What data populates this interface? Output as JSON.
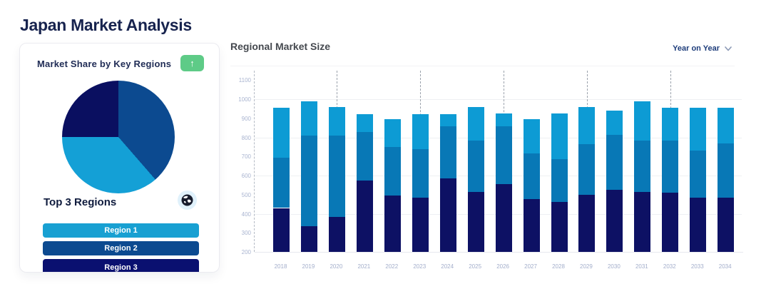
{
  "page_title": "Japan Market Analysis",
  "palette": {
    "title_navy": "#17234e",
    "green_accent": "#5ecb87",
    "bar_navy": "#0d1164",
    "bar_blue": "#0878b6",
    "bar_light_blue": "#0d9bd4",
    "pie_navy": "#0a0f60",
    "pie_blue": "#0c4a90",
    "pie_light_blue": "#14a0d6",
    "globe_bg": "#e0f1fb",
    "globe_fill": "#161b2c"
  },
  "market_share_card": {
    "title": "Market Share by Key Regions",
    "trend_button_icon": "↑",
    "top_regions_title": "Top 3 Regions",
    "globe_icon": "globe-icon",
    "regions": [
      {
        "label": "Region 1",
        "color": "#18a0d2"
      },
      {
        "label": "Region 2",
        "color": "#0c4a90"
      },
      {
        "label": "Region 3",
        "color": "#0a1070"
      }
    ]
  },
  "market_size_panel": {
    "title": "Regional Market Size",
    "filter_label": "Year on Year"
  },
  "chart_data": [
    {
      "type": "pie",
      "title": "Market Share by Key Regions",
      "start_angle_deg": 0,
      "clockwise": true,
      "slices": [
        {
          "name": "blue-slice",
          "value_pct": 38.6,
          "color": "#0c4a90"
        },
        {
          "name": "light-blue-slice",
          "value_pct": 36.4,
          "color": "#14a0d6"
        },
        {
          "name": "navy-slice",
          "value_pct": 25.0,
          "color": "#0a0f60"
        }
      ]
    },
    {
      "type": "bar",
      "stacked": true,
      "title": "Regional Market Size",
      "x": [
        2018,
        2019,
        2020,
        2021,
        2022,
        2023,
        2024,
        2025,
        2026,
        2027,
        2028,
        2029,
        2030,
        2031,
        2032,
        2033,
        2034
      ],
      "baseline_value": 200,
      "ylim": [
        200,
        1150
      ],
      "yticks": [
        1100,
        1000,
        900,
        800,
        700,
        600,
        500,
        400,
        300,
        200
      ],
      "light_gridline_values": [
        1000,
        800,
        600,
        400
      ],
      "dashed_gridline_years": [
        2020,
        2023,
        2026,
        2029,
        2032
      ],
      "legend": "none",
      "series": [
        {
          "name": "navy-bottom",
          "color": "#0d1164",
          "cumulative_top": [
            430,
            335,
            385,
            575,
            495,
            485,
            585,
            515,
            555,
            475,
            460,
            500,
            525,
            515,
            510,
            485,
            485
          ]
        },
        {
          "name": "blue-middle",
          "color": "#0878b6",
          "cumulative_top": [
            695,
            810,
            810,
            830,
            750,
            740,
            860,
            785,
            860,
            715,
            685,
            765,
            815,
            785,
            785,
            730,
            770
          ]
        },
        {
          "name": "light-blue-top",
          "color": "#0d9bd4",
          "cumulative_top": [
            955,
            990,
            960,
            920,
            895,
            920,
            920,
            960,
            925,
            895,
            925,
            960,
            940,
            990,
            955,
            955,
            955
          ]
        }
      ]
    }
  ]
}
